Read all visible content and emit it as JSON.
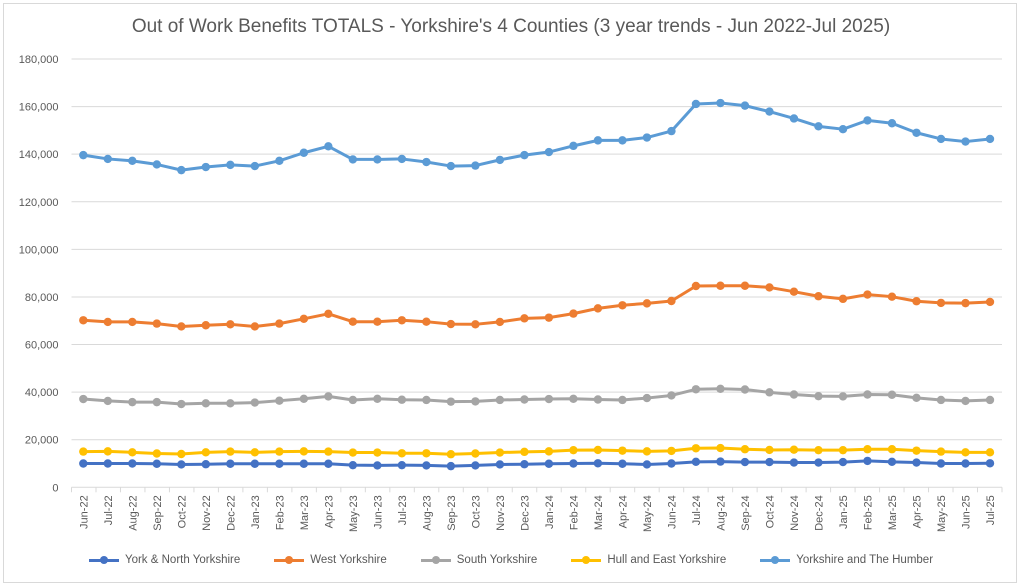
{
  "chart_data": {
    "type": "line",
    "title": "Out of Work Benefits TOTALS - Yorkshire's 4 Counties (3 year trends - Jun 2022-Jul 2025)",
    "xlabel": "",
    "ylabel": "",
    "ylim": [
      0,
      180000
    ],
    "yticks": [
      0,
      20000,
      40000,
      60000,
      80000,
      100000,
      120000,
      140000,
      160000,
      180000
    ],
    "ytick_labels": [
      "0",
      "20,000",
      "40,000",
      "60,000",
      "80,000",
      "100,000",
      "120,000",
      "140,000",
      "160,000",
      "180,000"
    ],
    "grid": "horizontal",
    "legend": "bottom",
    "categories": [
      "Jun-22",
      "Jul-22",
      "Aug-22",
      "Sep-22",
      "Oct-22",
      "Nov-22",
      "Dec-22",
      "Jan-23",
      "Feb-23",
      "Mar-23",
      "Apr-23",
      "May-23",
      "Jun-23",
      "Jul-23",
      "Aug-23",
      "Sep-23",
      "Oct-23",
      "Nov-23",
      "Dec-23",
      "Jan-24",
      "Feb-24",
      "Mar-24",
      "Apr-24",
      "May-24",
      "Jun-24",
      "Jul-24",
      "Aug-24",
      "Sep-24",
      "Oct-24",
      "Nov-24",
      "Dec-24",
      "Jan-25",
      "Feb-25",
      "Mar-25",
      "Apr-25",
      "May-25",
      "Jun-25",
      "Jul-25"
    ],
    "series": [
      {
        "name": "York & North Yorkshire",
        "color": "#4472c4",
        "values": [
          10000,
          10000,
          10000,
          9900,
          9600,
          9700,
          9900,
          9900,
          9900,
          9900,
          9900,
          9300,
          9200,
          9300,
          9200,
          8900,
          9200,
          9600,
          9700,
          9900,
          10000,
          10100,
          9900,
          9600,
          10000,
          10700,
          10800,
          10600,
          10600,
          10400,
          10400,
          10600,
          11100,
          10700,
          10400,
          10000,
          10000,
          10100
        ]
      },
      {
        "name": "West Yorkshire",
        "color": "#ed7d31",
        "values": [
          70200,
          69500,
          69500,
          68800,
          67600,
          68100,
          68500,
          67600,
          68800,
          70800,
          72900,
          69600,
          69600,
          70200,
          69600,
          68600,
          68500,
          69500,
          71000,
          71300,
          73000,
          75200,
          76500,
          77300,
          78300,
          84600,
          84700,
          84700,
          84000,
          82200,
          80300,
          79200,
          81000,
          80100,
          78200,
          77500,
          77400,
          77900
        ]
      },
      {
        "name": "South Yorkshire",
        "color": "#a5a5a5",
        "values": [
          37100,
          36300,
          35800,
          35800,
          35000,
          35300,
          35300,
          35600,
          36400,
          37200,
          38200,
          36700,
          37200,
          36800,
          36700,
          36000,
          36100,
          36700,
          36900,
          37100,
          37200,
          36900,
          36700,
          37500,
          38600,
          41200,
          41400,
          41100,
          39900,
          39000,
          38300,
          38200,
          39000,
          38900,
          37600,
          36700,
          36300,
          36700
        ]
      },
      {
        "name": "Hull and East Yorkshire",
        "color": "#ffc000",
        "values": [
          15000,
          15100,
          14700,
          14200,
          14000,
          14700,
          15000,
          14700,
          15000,
          15100,
          15000,
          14600,
          14600,
          14300,
          14300,
          13900,
          14200,
          14600,
          14900,
          15100,
          15600,
          15700,
          15400,
          15100,
          15300,
          16400,
          16500,
          16000,
          15700,
          15800,
          15600,
          15600,
          16000,
          16000,
          15400,
          15000,
          14700,
          14700
        ]
      },
      {
        "name": "Yorkshire and The Humber",
        "color": "#5b9bd5",
        "values": [
          139600,
          138000,
          137200,
          135700,
          133300,
          134600,
          135500,
          135000,
          137200,
          140600,
          143300,
          137800,
          137800,
          138000,
          136700,
          135000,
          135200,
          137600,
          139600,
          140900,
          143500,
          145800,
          145800,
          147000,
          149700,
          161100,
          161500,
          160400,
          157900,
          155000,
          151700,
          150500,
          154200,
          153000,
          149000,
          146400,
          145300,
          146400
        ]
      }
    ]
  }
}
